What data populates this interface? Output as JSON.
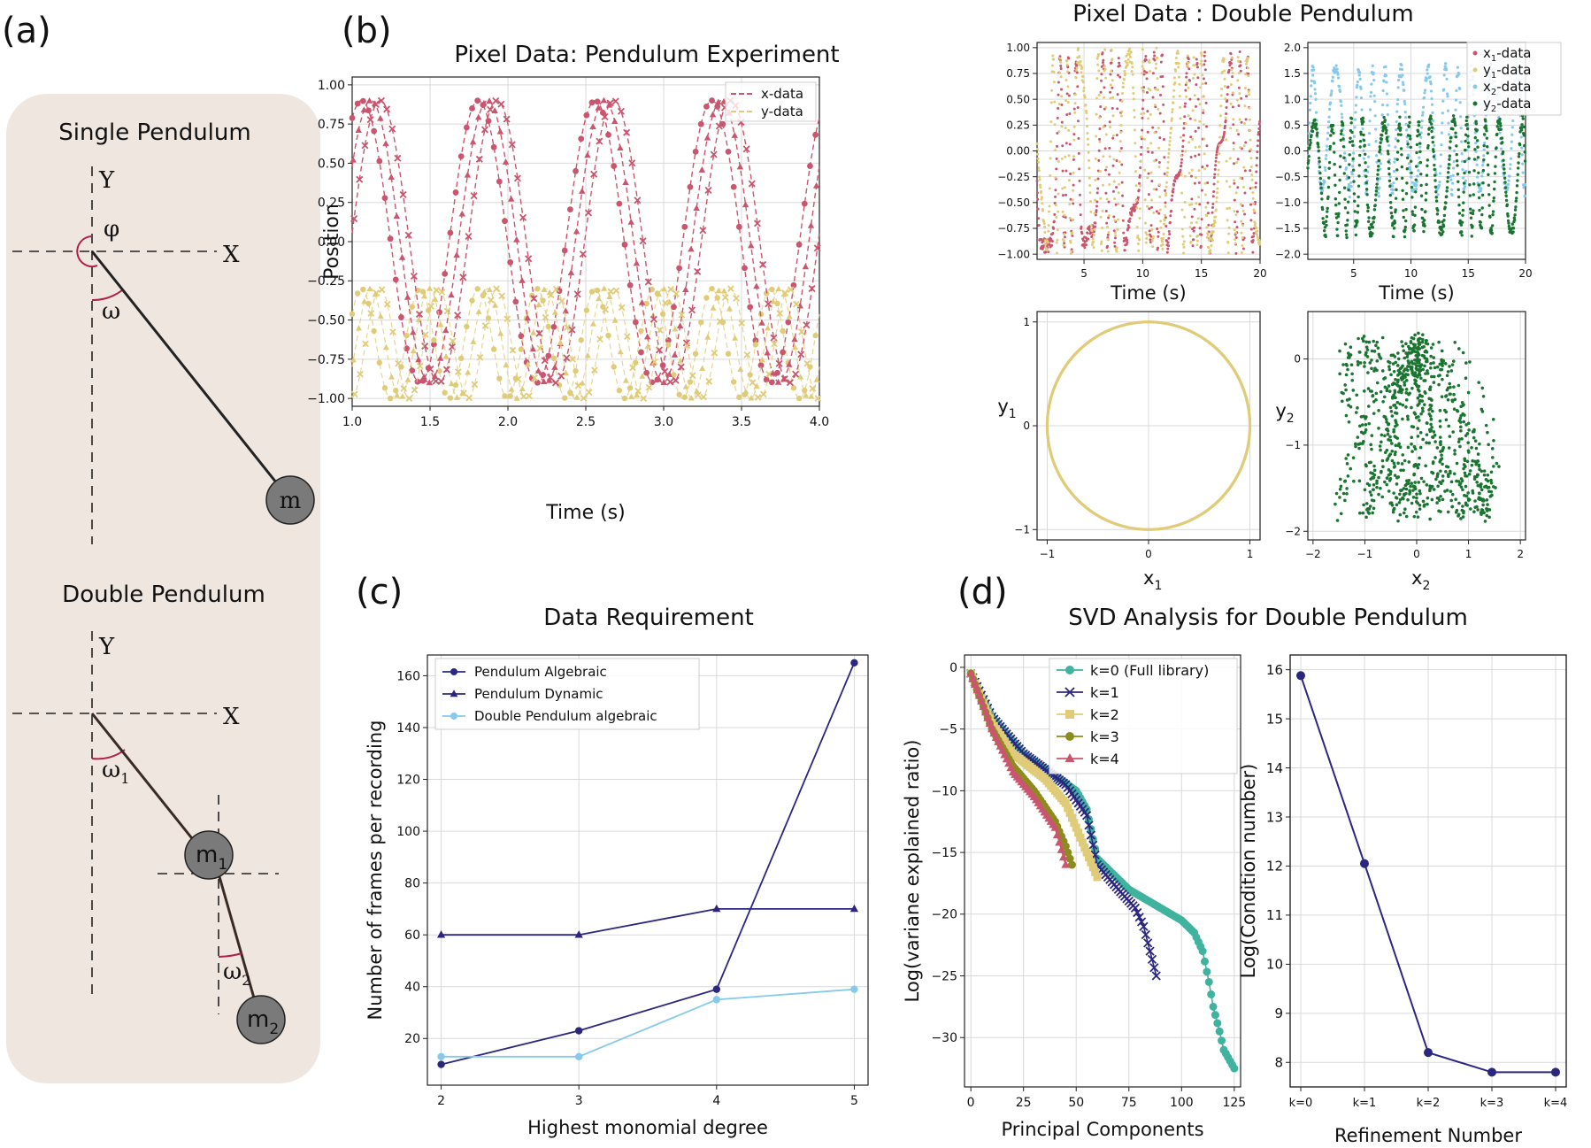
{
  "panel_letters": {
    "a": "(a)",
    "b": "(b)",
    "c": "(c)",
    "d": "(d)"
  },
  "colors": {
    "pink": "#c9566e",
    "yellow": "#e0cc78",
    "light_blue": "#87c9ea",
    "dark_green": "#1a7530",
    "navy": "#2b2680",
    "teal": "#3fb39e",
    "olive": "#8c8c1c",
    "diagram_bg": "#efe6e0",
    "mass": "#7a7a7a",
    "arc": "#b0204a"
  },
  "diagram": {
    "single": {
      "title": "Single Pendulum",
      "axis_x": "X",
      "axis_y": "Y",
      "phi": "φ",
      "omega": "ω",
      "mass": "m"
    },
    "double": {
      "title": "Double Pendulum",
      "axis_x": "X",
      "axis_y": "Y",
      "omega1": "ω",
      "omega1_sub": "1",
      "omega2": "ω",
      "omega2_sub": "2",
      "mass1": "m",
      "mass1_sub": "1",
      "mass2": "m",
      "mass2_sub": "2"
    }
  },
  "chart_data": [
    {
      "id": "b",
      "type": "line",
      "title": "Pixel Data: Pendulum Experiment",
      "xlabel": "Time (s)",
      "ylabel": "Position",
      "xlim": [
        1.0,
        4.0
      ],
      "ylim": [
        -1.05,
        1.05
      ],
      "xticks": [
        1.0,
        1.5,
        2.0,
        2.5,
        3.0,
        3.5,
        4.0
      ],
      "xtick_labels": [
        "1.0",
        "1.5",
        "2.0",
        "2.5",
        "3.0",
        "3.5",
        "4.0"
      ],
      "yticks": [
        1.0,
        0.75,
        0.5,
        0.25,
        0.0,
        -0.25,
        -0.5,
        -0.75,
        -1.0
      ],
      "ytick_labels": [
        "1.00",
        "0.75",
        "0.50",
        "0.25",
        "0.00",
        "−0.25",
        "−0.50",
        "−0.75",
        "−1.00"
      ],
      "legend": [
        "x-data",
        "y-data"
      ],
      "series": [
        {
          "name": "x-data",
          "color": "#c9566e",
          "amplitude": 0.9,
          "period_s": 0.75,
          "peaks_at_s": [
            1.12,
            1.88,
            2.62,
            3.36
          ],
          "offsets_s": [
            -0.06,
            0.0,
            0.06
          ],
          "markers": [
            "o",
            "^",
            "x"
          ]
        },
        {
          "name": "y-data",
          "color": "#e0cc78",
          "range": [
            -1.0,
            -0.3
          ],
          "period_s": 0.375,
          "offsets_s": [
            -0.06,
            0.0,
            0.06
          ],
          "markers": [
            "o",
            "^",
            "x"
          ]
        }
      ]
    },
    {
      "id": "b-dp",
      "title": "Pixel Data : Double Pendulum",
      "panels": [
        {
          "id": "b1",
          "type": "scatter",
          "xlabel": "Time (s)",
          "xlim": [
            1,
            20
          ],
          "ylim": [
            -1.05,
            1.05
          ],
          "xticks": [
            5,
            10,
            15,
            20
          ],
          "xtick_labels": [
            "5",
            "10",
            "15",
            "20"
          ],
          "yticks": [
            1.0,
            0.75,
            0.5,
            0.25,
            0.0,
            -0.25,
            -0.5,
            -0.75,
            -1.0
          ],
          "ytick_labels": [
            "1.00",
            "0.75",
            "0.50",
            "0.25",
            "0.00",
            "−0.25",
            "−0.50",
            "−0.75",
            "−1.00"
          ],
          "series": [
            {
              "name": "x1-data",
              "color": "#c9566e"
            },
            {
              "name": "y1-data",
              "color": "#e0cc78"
            }
          ]
        },
        {
          "id": "b2",
          "type": "scatter",
          "xlabel": "Time (s)",
          "xlim": [
            1,
            20
          ],
          "ylim": [
            -2.1,
            2.1
          ],
          "xticks": [
            5,
            10,
            15,
            20
          ],
          "xtick_labels": [
            "5",
            "10",
            "15",
            "20"
          ],
          "yticks": [
            2.0,
            1.5,
            1.0,
            0.5,
            0.0,
            -0.5,
            -1.0,
            -1.5,
            -2.0
          ],
          "ytick_labels": [
            "2.0",
            "1.5",
            "1.0",
            "0.5",
            "0.0",
            "−0.5",
            "−1.0",
            "−1.5",
            "−2.0"
          ],
          "legend": [
            {
              "main": "x",
              "sub": "1",
              "rest": "-data",
              "color": "#c9566e"
            },
            {
              "main": "y",
              "sub": "1",
              "rest": "-data",
              "color": "#e0cc78"
            },
            {
              "main": "x",
              "sub": "2",
              "rest": "-data",
              "color": "#87c9ea"
            },
            {
              "main": "y",
              "sub": "2",
              "rest": "-data",
              "color": "#1a7530"
            }
          ]
        },
        {
          "id": "b3",
          "type": "scatter",
          "xlim": [
            -1.1,
            1.1
          ],
          "ylim": [
            -1.1,
            1.1
          ],
          "xticks": [
            -1,
            0,
            1
          ],
          "xtick_labels": [
            "−1",
            "0",
            "1"
          ],
          "yticks": [
            1,
            0,
            -1
          ],
          "ytick_labels": [
            "1",
            "0",
            "−1"
          ],
          "xlabel_main": "x",
          "xlabel_sub": "1",
          "ylabel_main": "y",
          "ylabel_sub": "1",
          "shape": "unit circle",
          "color": "#e0cc78"
        },
        {
          "id": "b4",
          "type": "scatter",
          "xlim": [
            -2.1,
            2.1
          ],
          "ylim": [
            -2.1,
            0.55
          ],
          "xticks": [
            -2,
            -1,
            0,
            1,
            2
          ],
          "xtick_labels": [
            "−2",
            "−1",
            "0",
            "1",
            "2"
          ],
          "yticks": [
            0,
            -1,
            -2
          ],
          "ytick_labels": [
            "0",
            "−1",
            "−2"
          ],
          "xlabel_main": "x",
          "xlabel_sub": "2",
          "ylabel_main": "y",
          "ylabel_sub": "2",
          "color": "#1a7530"
        }
      ]
    },
    {
      "id": "c",
      "type": "line",
      "title": "Data Requirement",
      "xlabel": "Highest monomial degree",
      "ylabel": "Number of frames per recording",
      "x": [
        2,
        3,
        4,
        5
      ],
      "xlim": [
        1.9,
        5.1
      ],
      "ylim": [
        2,
        168
      ],
      "xticks": [
        2,
        3,
        4,
        5
      ],
      "xtick_labels": [
        "2",
        "3",
        "4",
        "5"
      ],
      "yticks": [
        20,
        40,
        60,
        80,
        100,
        120,
        140,
        160
      ],
      "ytick_labels": [
        "20",
        "40",
        "60",
        "80",
        "100",
        "120",
        "140",
        "160"
      ],
      "series": [
        {
          "name": "Pendulum Algebraic",
          "values": [
            10,
            23,
            39,
            165
          ],
          "color": "#2b2680",
          "marker": "o"
        },
        {
          "name": "Pendulum Dynamic",
          "values": [
            60,
            60,
            70,
            70
          ],
          "color": "#2b2680",
          "marker": "^"
        },
        {
          "name": "Double Pendulum algebraic",
          "values": [
            13,
            13,
            35,
            39
          ],
          "color": "#87c9ea",
          "marker": "o"
        }
      ]
    },
    {
      "id": "d",
      "title": "SVD Analysis for Double Pendulum",
      "panels": [
        {
          "id": "d1",
          "type": "line",
          "xlabel": "Principal Components",
          "ylabel": "Log(variane explained ratio)",
          "xlim": [
            -3,
            128
          ],
          "ylim": [
            -34,
            1
          ],
          "xticks": [
            0,
            25,
            50,
            75,
            100,
            125
          ],
          "xtick_labels": [
            "0",
            "25",
            "50",
            "75",
            "100",
            "125"
          ],
          "yticks": [
            0,
            -5,
            -10,
            -15,
            -20,
            -25,
            -30
          ],
          "ytick_labels": [
            "0",
            "−5",
            "−10",
            "−15",
            "−20",
            "−25",
            "−30"
          ],
          "series": [
            {
              "name": "k=0 (Full library)",
              "color": "#3fb39e",
              "marker": "o",
              "n": 125,
              "x": [
                0,
                10,
                25,
                50,
                55,
                60,
                75,
                85,
                100,
                106,
                110,
                113,
                115,
                118,
                120,
                125
              ],
              "y": [
                -0.5,
                -4,
                -7,
                -10,
                -11.5,
                -15.5,
                -18,
                -19,
                -20.5,
                -21.5,
                -23,
                -25.5,
                -27.5,
                -29.5,
                -31,
                -32.5
              ]
            },
            {
              "name": "k=1",
              "color": "#2b2680",
              "marker": "x",
              "n": 88,
              "x": [
                0,
                10,
                25,
                45,
                55,
                60,
                70,
                78,
                82,
                85,
                88
              ],
              "y": [
                -0.5,
                -4,
                -7,
                -9.5,
                -12,
                -16,
                -18,
                -19.5,
                -21,
                -23,
                -25
              ]
            },
            {
              "name": "k=2",
              "color": "#e0cc78",
              "marker": "s",
              "n": 60,
              "x": [
                0,
                10,
                20,
                35,
                45,
                50,
                55,
                60
              ],
              "y": [
                -0.5,
                -4.5,
                -7,
                -9,
                -11,
                -13,
                -15,
                -17
              ]
            },
            {
              "name": "k=3",
              "color": "#8c8c1c",
              "marker": "o",
              "n": 48,
              "x": [
                0,
                10,
                20,
                30,
                40,
                45,
                48
              ],
              "y": [
                -0.5,
                -5,
                -8,
                -10,
                -12.5,
                -14.5,
                -16
              ]
            },
            {
              "name": "k=4",
              "color": "#c9566e",
              "marker": "^",
              "n": 45,
              "x": [
                0,
                10,
                20,
                30,
                40,
                45
              ],
              "y": [
                -0.5,
                -5,
                -8.5,
                -10.5,
                -13,
                -16
              ]
            }
          ]
        },
        {
          "id": "d2",
          "type": "line",
          "xlabel": "Refinement Number",
          "ylabel": "Log(Condition number)",
          "categories": [
            "k=0",
            "k=1",
            "k=2",
            "k=3",
            "k=4"
          ],
          "values": [
            15.88,
            12.05,
            8.2,
            7.8,
            7.8
          ],
          "ylim": [
            7.5,
            16.3
          ],
          "yticks": [
            16,
            15,
            14,
            13,
            12,
            11,
            10,
            9,
            8
          ],
          "ytick_labels": [
            "16",
            "15",
            "14",
            "13",
            "12",
            "11",
            "10",
            "9",
            "8"
          ],
          "color": "#2b2680"
        }
      ]
    }
  ]
}
